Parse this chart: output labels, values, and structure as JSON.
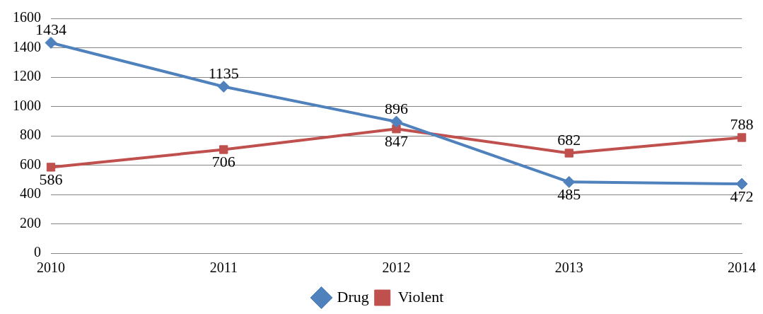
{
  "chart_data": {
    "type": "line",
    "categories": [
      "2010",
      "2011",
      "2012",
      "2013",
      "2014"
    ],
    "series": [
      {
        "name": "Drug",
        "color": "#4f81bd",
        "values": [
          1434,
          1135,
          896,
          485,
          472
        ],
        "marker": "diamond"
      },
      {
        "name": "Violent",
        "color": "#c0504d",
        "values": [
          586,
          706,
          847,
          682,
          788
        ],
        "marker": "square"
      }
    ],
    "ylim": [
      0,
      1600
    ],
    "yticks": [
      0,
      200,
      400,
      600,
      800,
      1000,
      1200,
      1400,
      1600
    ],
    "grid": "y",
    "legend": "bottom",
    "data_labels": true
  }
}
